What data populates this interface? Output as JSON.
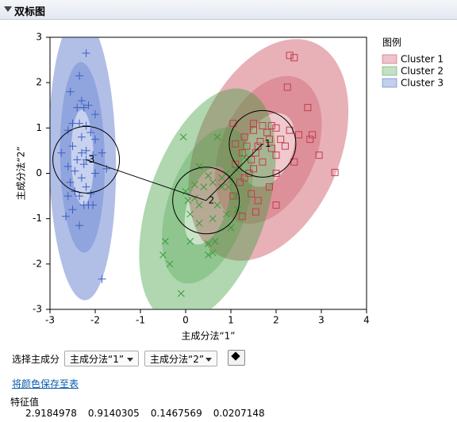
{
  "panel": {
    "title": "双标图"
  },
  "chart_data": {
    "type": "scatter",
    "xlabel": "主成分法“1”",
    "ylabel": "主成分法“2”",
    "xlim": [
      -3,
      4
    ],
    "ylim": [
      -3,
      3
    ],
    "xticks": [
      -3,
      -2,
      -1,
      0,
      1,
      2,
      3,
      4
    ],
    "yticks": [
      -3,
      -2,
      -1,
      0,
      1,
      2,
      3
    ],
    "legend_title": "图例",
    "series": [
      {
        "name": "Cluster 1",
        "color": "#c43c4c",
        "marker": "square",
        "x": [
          2.3,
          2.4,
          2.25,
          2.7,
          1.5,
          1.7,
          1.9,
          2.0,
          1.5,
          1.8,
          2.3,
          2.5,
          2.8,
          1.3,
          1.65,
          1.85,
          2.1,
          2.75,
          1.1,
          1.35,
          1.6,
          1.9,
          2.2,
          1.25,
          1.55,
          2.0,
          2.95,
          1.45,
          1.7,
          2.4,
          1.1,
          1.5,
          3.3,
          1.4,
          2.0,
          1.2,
          1.45,
          1.85,
          1.6,
          2.0,
          1.55,
          1.05,
          1.25,
          1.05,
          1.3
        ],
        "values": [
          2.6,
          2.55,
          1.9,
          1.45,
          1.1,
          1.05,
          1.05,
          1.0,
          0.95,
          0.9,
          0.95,
          0.85,
          0.85,
          0.8,
          0.7,
          0.75,
          0.75,
          0.75,
          0.65,
          0.6,
          0.6,
          0.55,
          0.6,
          0.45,
          0.45,
          0.4,
          0.4,
          0.3,
          0.25,
          0.25,
          0.2,
          0.1,
          0.02,
          0.0,
          0.0,
          -0.2,
          -0.45,
          -0.3,
          -0.6,
          -0.7,
          -0.85,
          -0.5,
          -0.95,
          1.1,
          -0.1
        ]
      },
      {
        "name": "Cluster 2",
        "color": "#3a9a3a",
        "marker": "x",
        "x": [
          -0.45,
          -0.5,
          -0.35,
          -0.1,
          0.1,
          0.5,
          0.5,
          0.6,
          0.65,
          0.3,
          0.1,
          0.2,
          0.0,
          0.2,
          0.4,
          0.5,
          0.6,
          0.8,
          0.9,
          0.95,
          1.0,
          1.1,
          0.7,
          0.6,
          0.9,
          1.15,
          1.0,
          0.3,
          0.05,
          0.8,
          1.1,
          0.3,
          -0.05,
          0.7,
          1.3
        ],
        "values": [
          -1.5,
          -1.8,
          -2.0,
          -2.65,
          -1.5,
          -1.8,
          -1.55,
          -1.75,
          -1.5,
          -1.1,
          -0.9,
          -0.55,
          -0.4,
          -0.25,
          -0.3,
          -0.05,
          -0.2,
          -0.3,
          0.0,
          -0.3,
          -0.15,
          -0.5,
          -0.7,
          -1.0,
          -0.9,
          -0.8,
          -1.2,
          -0.7,
          -0.6,
          -0.1,
          0.1,
          0.15,
          0.8,
          0.8,
          0.35
        ]
      },
      {
        "name": "Cluster 3",
        "color": "#3b5fc4",
        "marker": "plus",
        "x": [
          -2.2,
          -2.35,
          -2.55,
          -2.3,
          -2.15,
          -2.25,
          -2.4,
          -2.0,
          -2.5,
          -2.2,
          -2.35,
          -2.6,
          -2.1,
          -2.3,
          -2.0,
          -2.5,
          -2.75,
          -2.2,
          -2.3,
          -2.05,
          -1.85,
          -2.4,
          -2.2,
          -2.25,
          -2.6,
          -1.75,
          -2.45,
          -2.0,
          -2.3,
          -2.55,
          -2.2,
          -2.45,
          -2.1,
          -2.35,
          -2.6,
          -2.05,
          -2.25,
          -2.5,
          -2.65,
          -2.15,
          -2.35,
          -1.85
        ],
        "values": [
          2.65,
          2.15,
          1.8,
          1.6,
          1.5,
          1.45,
          1.45,
          1.3,
          1.1,
          1.05,
          1.1,
          0.95,
          0.9,
          0.8,
          0.75,
          0.6,
          0.45,
          0.5,
          0.45,
          0.4,
          0.45,
          0.3,
          0.3,
          0.2,
          0.15,
          0.1,
          0.05,
          0.0,
          -0.1,
          -0.2,
          -0.3,
          -0.4,
          -0.45,
          -0.5,
          -0.5,
          -0.7,
          -0.7,
          -0.8,
          -0.95,
          -0.7,
          -1.15,
          -2.33
        ]
      }
    ],
    "centers": [
      {
        "label": "1",
        "x": 1.7,
        "y": 0.65
      },
      {
        "label": "2",
        "x": 0.45,
        "y": -0.6
      },
      {
        "label": "3",
        "x": -2.2,
        "y": 0.3
      }
    ]
  },
  "controls": {
    "label": "选择主成分",
    "select1": "主成分法“1”",
    "select2": "主成分法“2”",
    "link": "将颜色保存至表"
  },
  "eigenvalues": {
    "title": "特征值",
    "values": [
      2.9184978,
      0.9140305,
      0.1467569,
      0.0207148
    ]
  }
}
